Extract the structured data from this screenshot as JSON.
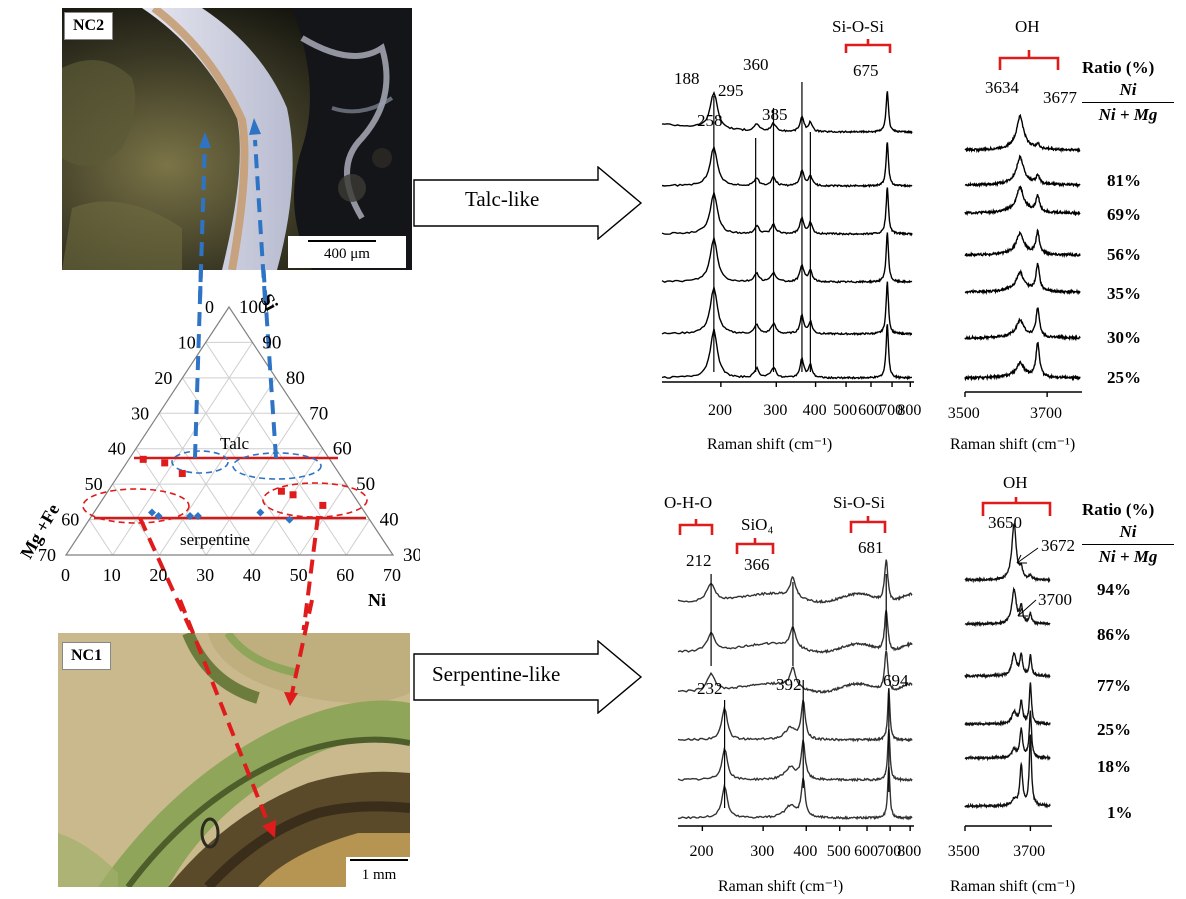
{
  "micrographs": {
    "top": {
      "label": "NC2",
      "scale": "400 μm"
    },
    "bottom": {
      "label": "NC1",
      "scale": "1 mm"
    }
  },
  "ternary": {
    "apex_top_label": "Si",
    "left_label": "Mg +Fe",
    "right_label": "Ni",
    "field_talc": "Talc",
    "field_serpentine": "serpentine",
    "left_ticks": [
      "0",
      "10",
      "20",
      "30",
      "40",
      "50",
      "60",
      "70"
    ],
    "right_ticks": [
      "100",
      "90",
      "80",
      "70",
      "60",
      "50",
      "40",
      "30"
    ],
    "bottom_ticks": [
      "0",
      "10",
      "20",
      "30",
      "40",
      "50",
      "60",
      "70"
    ],
    "talc_points": [
      [
        15,
        42
      ],
      [
        17,
        41
      ],
      [
        25,
        41
      ],
      [
        27,
        41
      ],
      [
        43,
        42
      ],
      [
        50,
        40
      ]
    ],
    "serpentine_points": [
      [
        5,
        57
      ],
      [
        13,
        56
      ],
      [
        20,
        53
      ],
      [
        50,
        48
      ],
      [
        53,
        47
      ],
      [
        60,
        44
      ]
    ],
    "colors": {
      "talc": "#2f74c4",
      "serpentine": "#e01b1b",
      "boundary": "#d11a1a"
    }
  },
  "arrows": {
    "talc_like": "Talc-like",
    "serpentine_like": "Serpentine-like"
  },
  "chart_data": [
    {
      "type": "line",
      "panel": "talc-low-frequency",
      "xlabel": "Raman shift (cm⁻¹)",
      "xticks": [
        "200",
        "300",
        "400",
        "500",
        "600",
        "700",
        "800"
      ],
      "x_range": [
        130,
        810
      ],
      "scale": "log",
      "peak_labels": [
        "188",
        "258",
        "295",
        "360",
        "385",
        "675"
      ],
      "band_label": "Si-O-Si",
      "spectra_count": 6
    },
    {
      "type": "line",
      "panel": "talc-OH",
      "xlabel": "Raman shift (cm⁻¹)",
      "xticks": [
        "3500",
        "3700"
      ],
      "x_range": [
        3500,
        3780
      ],
      "peak_labels": [
        "3634",
        "3677"
      ],
      "band_label": "OH",
      "ratio_title": "Ratio (%)",
      "ratio_numerator": "Ni",
      "ratio_denominator": "Ni + Mg",
      "ratios": [
        "81%",
        "69%",
        "56%",
        "35%",
        "30%",
        "25%"
      ]
    },
    {
      "type": "line",
      "panel": "serpentine-low-frequency",
      "xlabel": "Raman shift (cm⁻¹)",
      "xticks": [
        "200",
        "300",
        "400",
        "500",
        "600",
        "700",
        "800"
      ],
      "x_range": [
        170,
        810
      ],
      "scale": "log",
      "peak_labels": [
        "212",
        "366",
        "681",
        "232",
        "392",
        "694"
      ],
      "band_labels": [
        "O-H-O",
        "SiO₄",
        "Si-O-Si"
      ],
      "spectra_count": 6
    },
    {
      "type": "line",
      "panel": "serpentine-OH",
      "xlabel": "Raman shift (cm⁻¹)",
      "xticks": [
        "3500",
        "3700"
      ],
      "x_range": [
        3500,
        3760
      ],
      "peak_labels": [
        "3650",
        "3672",
        "3700"
      ],
      "band_label": "OH",
      "ratio_title": "Ratio (%)",
      "ratio_numerator": "Ni",
      "ratio_denominator": "Ni + Mg",
      "ratios": [
        "94%",
        "86%",
        "77%",
        "25%",
        "18%",
        "1%"
      ]
    }
  ]
}
